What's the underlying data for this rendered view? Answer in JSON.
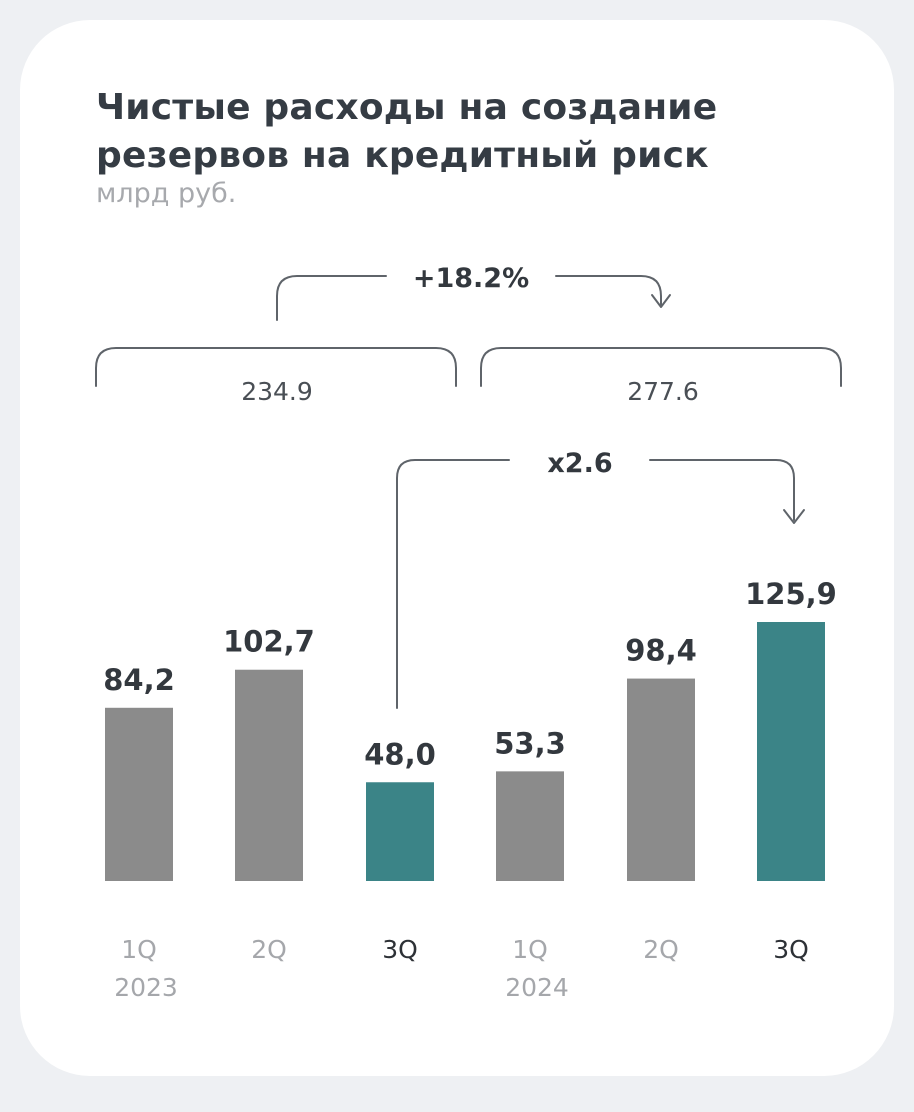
{
  "colors": {
    "bar": "#8b8b8b",
    "bar_highlight": "#3b8487",
    "background": "#ffffff"
  },
  "chart_data": {
    "type": "bar",
    "title": "Чистые расходы на создание\nрезервов на кредитный риск",
    "subtitle": "млрд руб.",
    "categories": [
      "1Q\n2023",
      "2Q",
      "3Q",
      "1Q\n2024",
      "2Q",
      "3Q"
    ],
    "values": [
      84.2,
      102.7,
      48.0,
      53.3,
      98.4,
      125.9
    ],
    "value_labels": [
      "84,2",
      "102,7",
      "48,0",
      "53,3",
      "98,4",
      "125,9"
    ],
    "highlighted": [
      false,
      false,
      true,
      false,
      false,
      true
    ],
    "ylim": [
      0,
      125.9
    ],
    "grid": false,
    "legend": "none",
    "groups": [
      {
        "label": "234.9",
        "from": 0,
        "to": 2
      },
      {
        "label": "277.6",
        "from": 3,
        "to": 5
      }
    ],
    "annotations": [
      {
        "text": "+18.2%",
        "kind": "group-change"
      },
      {
        "text": "x2.6",
        "kind": "bar-change",
        "from": 2,
        "to": 5
      }
    ]
  }
}
